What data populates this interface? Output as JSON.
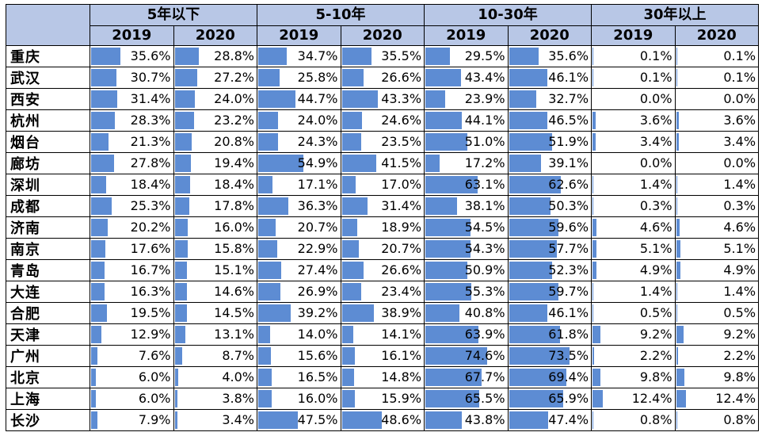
{
  "chart_data": {
    "type": "table",
    "bar_color": "#5d8cd3",
    "header_color": "#b8c7e6",
    "groups": [
      "5年以下",
      "5-10年",
      "10-30年",
      "30年以上"
    ],
    "years": [
      "2019",
      "2020"
    ],
    "rows": [
      {
        "city": "重庆",
        "values": [
          "35.6%",
          "28.8%",
          "34.7%",
          "35.5%",
          "29.5%",
          "35.6%",
          "0.1%",
          "0.1%"
        ]
      },
      {
        "city": "武汉",
        "values": [
          "30.7%",
          "27.2%",
          "25.8%",
          "26.6%",
          "43.4%",
          "46.1%",
          "0.1%",
          "0.1%"
        ]
      },
      {
        "city": "西安",
        "values": [
          "31.4%",
          "24.0%",
          "44.7%",
          "43.3%",
          "23.9%",
          "32.7%",
          "0.0%",
          "0.0%"
        ]
      },
      {
        "city": "杭州",
        "values": [
          "28.3%",
          "23.2%",
          "24.0%",
          "24.6%",
          "44.1%",
          "46.5%",
          "3.6%",
          "3.6%"
        ]
      },
      {
        "city": "烟台",
        "values": [
          "21.3%",
          "20.8%",
          "24.3%",
          "23.5%",
          "51.0%",
          "51.9%",
          "3.4%",
          "3.4%"
        ]
      },
      {
        "city": "廊坊",
        "values": [
          "27.8%",
          "19.4%",
          "54.9%",
          "41.5%",
          "17.2%",
          "39.1%",
          "0.0%",
          "0.0%"
        ]
      },
      {
        "city": "深圳",
        "values": [
          "18.4%",
          "18.4%",
          "17.1%",
          "17.0%",
          "63.1%",
          "62.6%",
          "1.4%",
          "1.4%"
        ]
      },
      {
        "city": "成都",
        "values": [
          "25.3%",
          "17.8%",
          "36.3%",
          "31.4%",
          "38.1%",
          "50.3%",
          "0.3%",
          "0.3%"
        ]
      },
      {
        "city": "济南",
        "values": [
          "20.2%",
          "16.0%",
          "20.7%",
          "18.9%",
          "54.5%",
          "59.6%",
          "4.6%",
          "4.6%"
        ]
      },
      {
        "city": "南京",
        "values": [
          "17.6%",
          "15.8%",
          "22.9%",
          "20.7%",
          "54.3%",
          "57.7%",
          "5.1%",
          "5.1%"
        ]
      },
      {
        "city": "青岛",
        "values": [
          "16.7%",
          "15.1%",
          "27.4%",
          "26.6%",
          "50.9%",
          "52.3%",
          "4.9%",
          "4.9%"
        ]
      },
      {
        "city": "大连",
        "values": [
          "16.3%",
          "14.6%",
          "26.9%",
          "23.4%",
          "55.3%",
          "59.7%",
          "1.4%",
          "1.4%"
        ]
      },
      {
        "city": "合肥",
        "values": [
          "19.5%",
          "14.5%",
          "39.2%",
          "38.9%",
          "40.8%",
          "46.1%",
          "0.5%",
          "0.5%"
        ]
      },
      {
        "city": "天津",
        "values": [
          "12.9%",
          "13.1%",
          "14.0%",
          "14.1%",
          "63.9%",
          "61.8%",
          "9.2%",
          "9.2%"
        ]
      },
      {
        "city": "广州",
        "values": [
          "7.6%",
          "8.7%",
          "15.6%",
          "16.1%",
          "74.6%",
          "73.5%",
          "2.2%",
          "2.2%"
        ]
      },
      {
        "city": "北京",
        "values": [
          "6.0%",
          "4.0%",
          "16.5%",
          "14.8%",
          "67.7%",
          "69.4%",
          "9.8%",
          "9.8%"
        ]
      },
      {
        "city": "上海",
        "values": [
          "6.0%",
          "3.8%",
          "16.0%",
          "15.9%",
          "65.5%",
          "65.9%",
          "12.4%",
          "12.4%"
        ]
      },
      {
        "city": "长沙",
        "values": [
          "7.9%",
          "3.4%",
          "47.5%",
          "48.6%",
          "43.8%",
          "47.4%",
          "0.8%",
          "0.8%"
        ]
      }
    ]
  }
}
